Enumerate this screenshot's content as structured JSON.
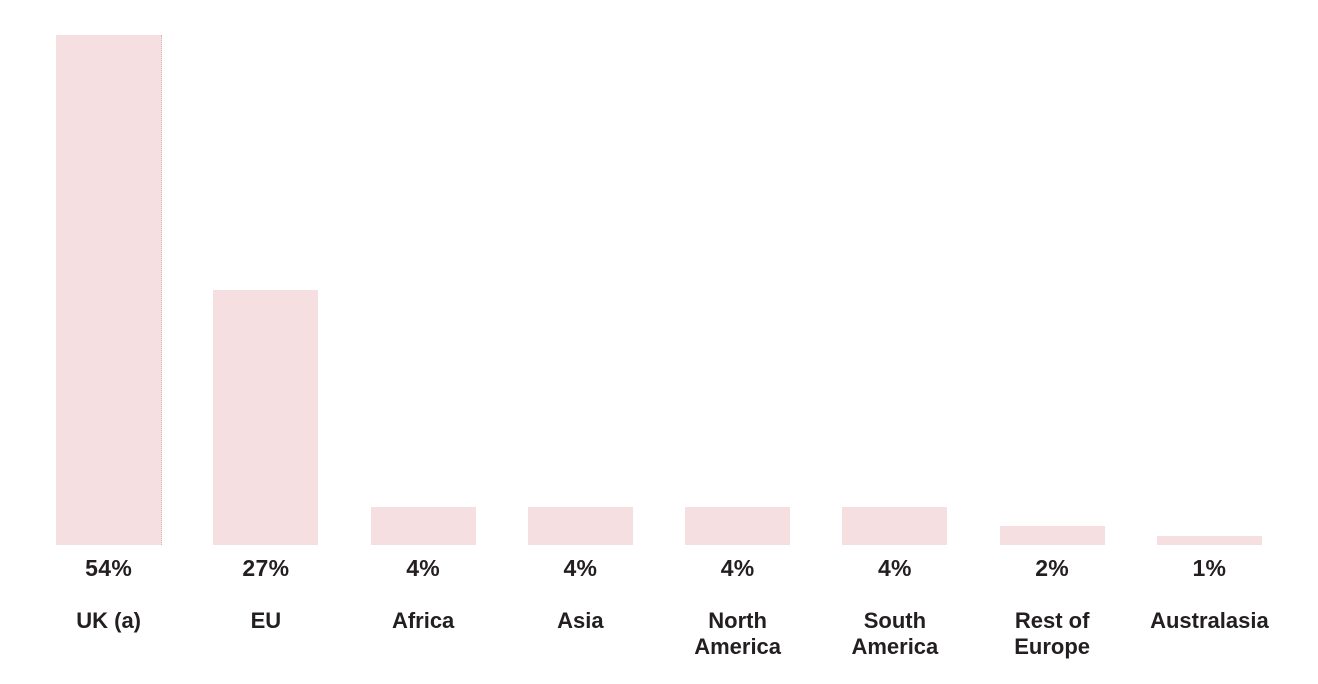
{
  "chart_data": {
    "type": "bar",
    "title": "",
    "xlabel": "",
    "ylabel": "",
    "categories": [
      "UK (a)",
      "EU",
      "Africa",
      "Asia",
      "North America",
      "South America",
      "Rest of Europe",
      "Australasia"
    ],
    "values": [
      54,
      27,
      4,
      4,
      4,
      4,
      2,
      1
    ],
    "value_labels": [
      "54%",
      "27%",
      "4%",
      "4%",
      "4%",
      "4%",
      "2%",
      "1%"
    ],
    "ylim": [
      0,
      54
    ],
    "grid": false,
    "legend": false,
    "bar_color": "#f6dfe1",
    "text_color": "#231f20"
  }
}
